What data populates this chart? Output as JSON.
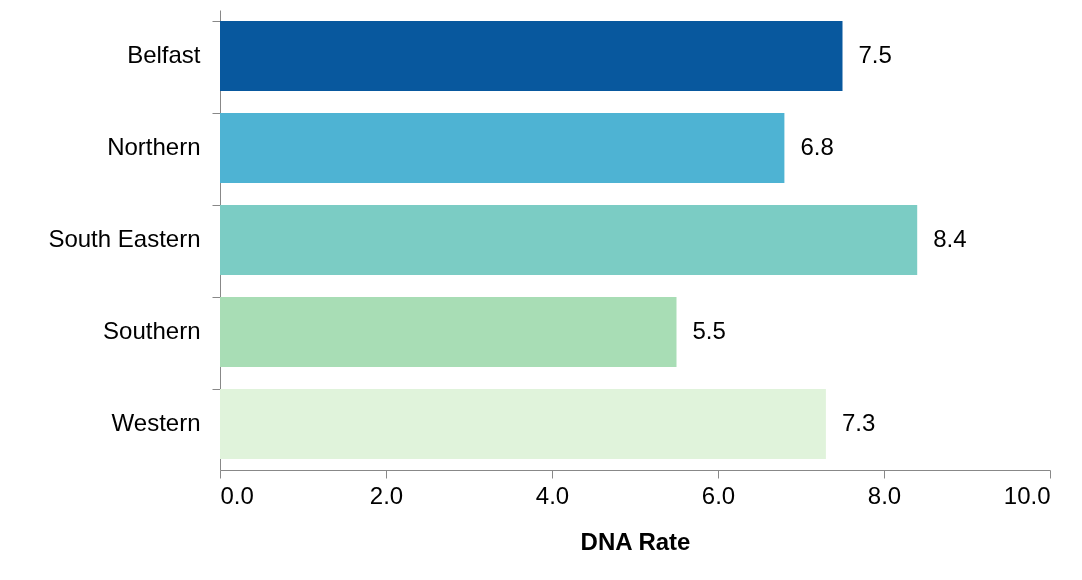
{
  "chart_data": {
    "type": "bar",
    "orientation": "horizontal",
    "xlabel": "DNA Rate",
    "categories": [
      "Belfast",
      "Northern",
      "South Eastern",
      "Southern",
      "Western"
    ],
    "values": [
      7.5,
      6.8,
      8.4,
      5.5,
      7.3
    ],
    "colors": [
      "#08589e",
      "#4eb3d3",
      "#7bccc4",
      "#a8ddb5",
      "#e0f3db"
    ],
    "xlim": [
      0,
      10
    ],
    "xticks": [
      {
        "value": 0,
        "label": "0.0"
      },
      {
        "value": 2,
        "label": "2.0"
      },
      {
        "value": 4,
        "label": "4.0"
      },
      {
        "value": 6,
        "label": "6.0"
      },
      {
        "value": 8,
        "label": "8.0"
      },
      {
        "value": 10,
        "label": "10.0"
      }
    ],
    "data_labels": true,
    "grid": false,
    "legend": false
  }
}
